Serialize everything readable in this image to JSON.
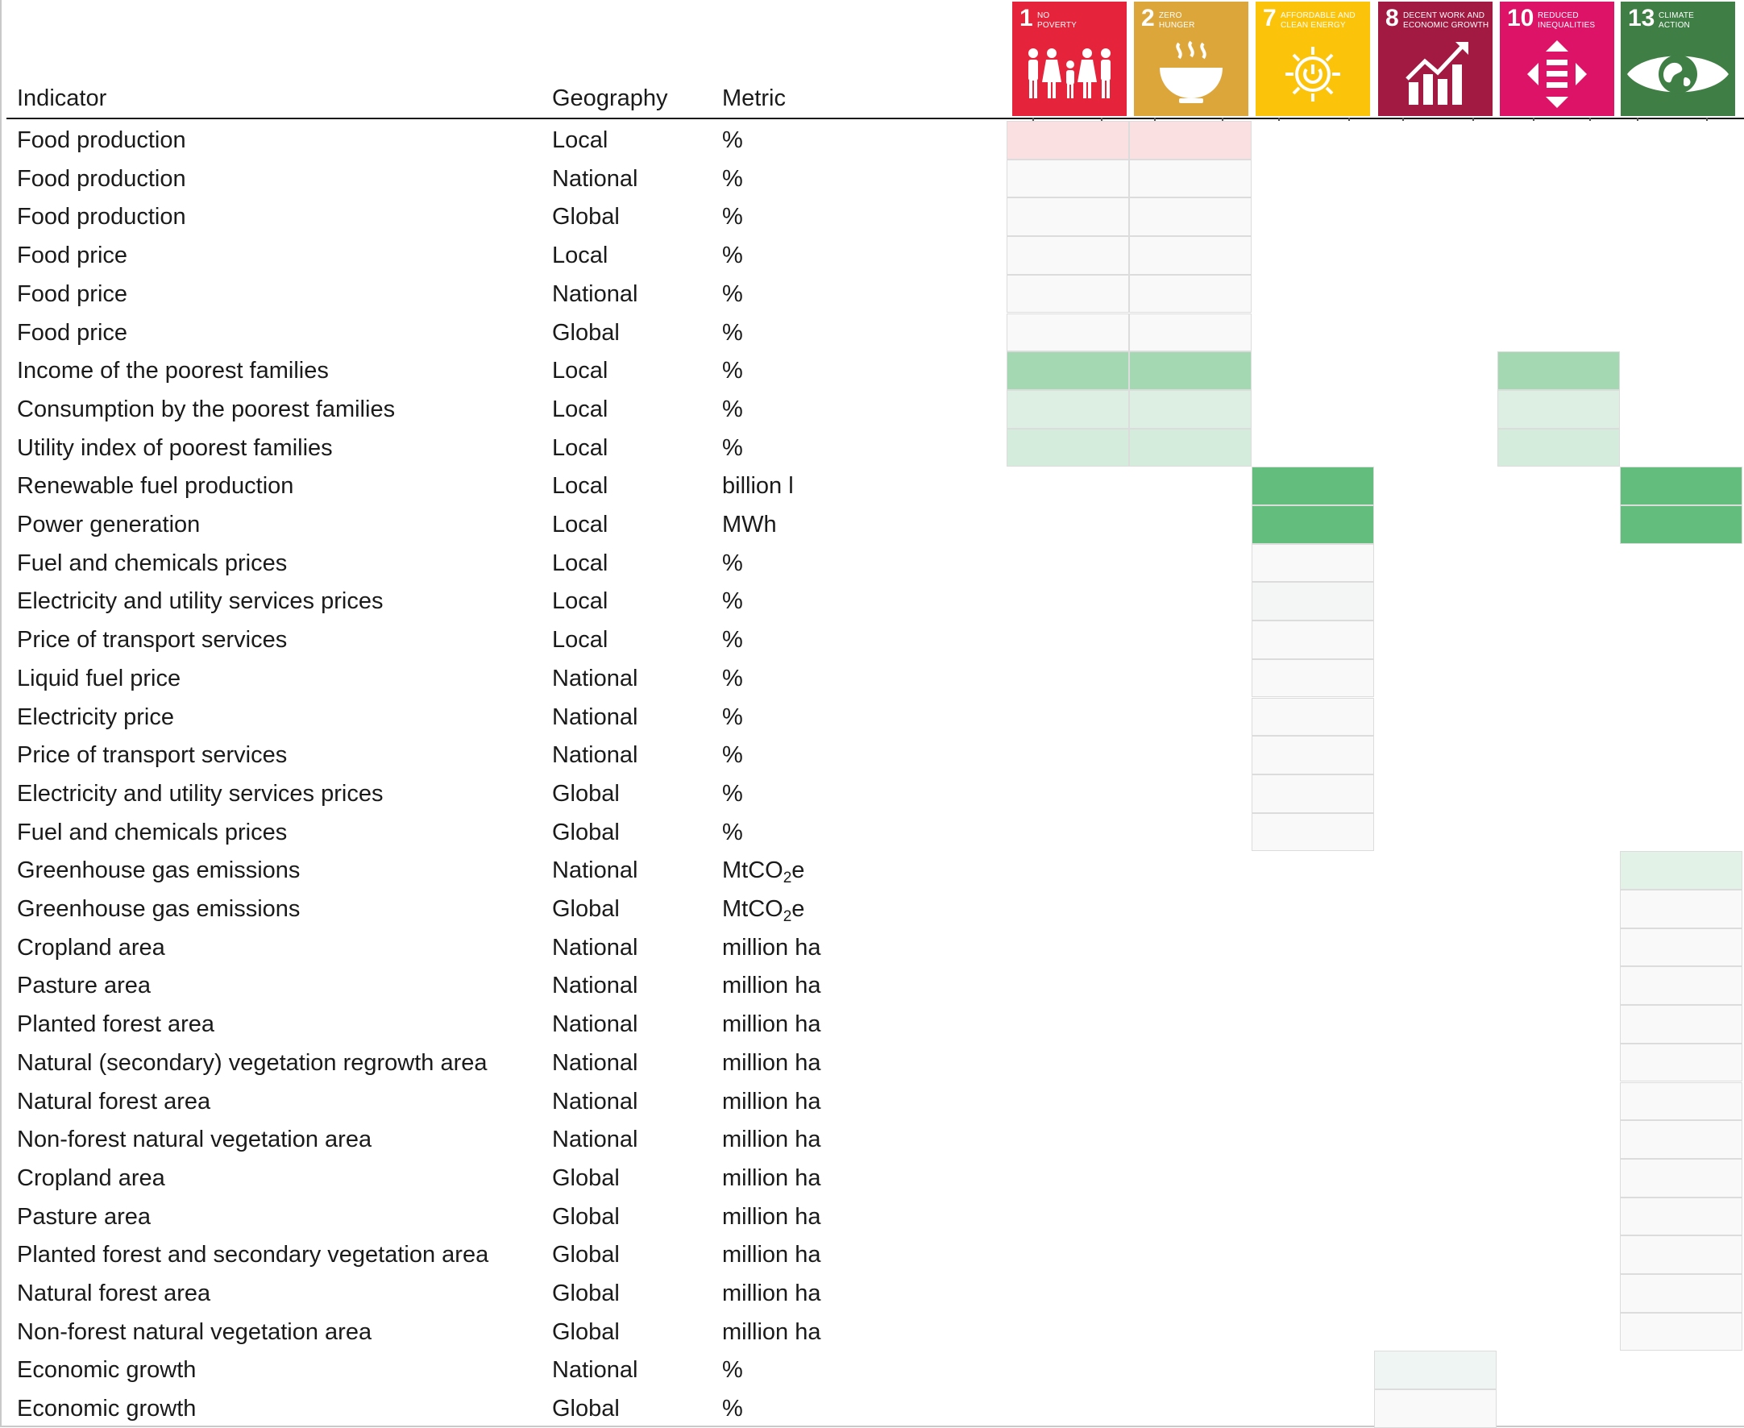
{
  "headers": {
    "indicator": "Indicator",
    "geography": "Geography",
    "metric": "Metric"
  },
  "sdg_tiles": [
    {
      "num": "1",
      "caption_l1": "NO",
      "caption_l2": "POVERTY",
      "color": "#e5243b",
      "icon": "family-icon"
    },
    {
      "num": "2",
      "caption_l1": "ZERO",
      "caption_l2": "HUNGER",
      "color": "#dda63a",
      "icon": "bowl-icon"
    },
    {
      "num": "7",
      "caption_l1": "AFFORDABLE AND",
      "caption_l2": "CLEAN ENERGY",
      "color": "#fcc30b",
      "icon": "sun-power-icon"
    },
    {
      "num": "8",
      "caption_l1": "DECENT WORK AND",
      "caption_l2": "ECONOMIC GROWTH",
      "color": "#a21942",
      "icon": "growth-chart-icon"
    },
    {
      "num": "10",
      "caption_l1": "REDUCED",
      "caption_l2": "INEQUALITIES",
      "color": "#dd1367",
      "icon": "equality-icon"
    },
    {
      "num": "13",
      "caption_l1": "CLIMATE",
      "caption_l2": "ACTION",
      "color": "#3f7e44",
      "icon": "earth-eye-icon"
    }
  ],
  "chart_data": {
    "type": "heatmap",
    "columns": [
      "1",
      "2",
      "7",
      "8",
      "10",
      "13"
    ],
    "rows": [
      {
        "indicator": "Food production",
        "geography": "Local",
        "metric": "%",
        "cells": [
          2,
          2,
          0,
          0,
          0,
          0
        ]
      },
      {
        "indicator": "Food production",
        "geography": "National",
        "metric": "%",
        "cells": [
          1,
          1,
          0,
          0,
          0,
          0
        ]
      },
      {
        "indicator": "Food production",
        "geography": "Global",
        "metric": "%",
        "cells": [
          1,
          1,
          0,
          0,
          0,
          0
        ]
      },
      {
        "indicator": "Food price",
        "geography": "Local",
        "metric": "%",
        "cells": [
          1,
          1,
          0,
          0,
          0,
          0
        ]
      },
      {
        "indicator": "Food price",
        "geography": "National",
        "metric": "%",
        "cells": [
          1,
          1,
          0,
          0,
          0,
          0
        ]
      },
      {
        "indicator": "Food price",
        "geography": "Global",
        "metric": "%",
        "cells": [
          1,
          1,
          0,
          0,
          0,
          0
        ]
      },
      {
        "indicator": "Income of the poorest families",
        "geography": "Local",
        "metric": "%",
        "cells": [
          5,
          5,
          0,
          0,
          5,
          0
        ]
      },
      {
        "indicator": "Consumption by the poorest families",
        "geography": "Local",
        "metric": "%",
        "cells": [
          3,
          3,
          0,
          0,
          3,
          0
        ]
      },
      {
        "indicator": "Utility index of poorest families",
        "geography": "Local",
        "metric": "%",
        "cells": [
          4,
          4,
          0,
          0,
          4,
          0
        ]
      },
      {
        "indicator": "Renewable fuel production",
        "geography": "Local",
        "metric": "billion l",
        "cells": [
          0,
          0,
          6,
          0,
          0,
          6
        ]
      },
      {
        "indicator": "Power generation",
        "geography": "Local",
        "metric": "MWh",
        "cells": [
          0,
          0,
          6,
          0,
          0,
          6
        ]
      },
      {
        "indicator": "Fuel and chemicals prices",
        "geography": "Local",
        "metric": "%",
        "cells": [
          0,
          0,
          1,
          0,
          0,
          0
        ]
      },
      {
        "indicator": "Electricity and utility services prices",
        "geography": "Local",
        "metric": "%",
        "cells": [
          0,
          0,
          7,
          0,
          0,
          0
        ]
      },
      {
        "indicator": "Price of transport services",
        "geography": "Local",
        "metric": "%",
        "cells": [
          0,
          0,
          1,
          0,
          0,
          0
        ]
      },
      {
        "indicator": "Liquid fuel price",
        "geography": "National",
        "metric": "%",
        "cells": [
          0,
          0,
          1,
          0,
          0,
          0
        ]
      },
      {
        "indicator": "Electricity price",
        "geography": "National",
        "metric": "%",
        "cells": [
          0,
          0,
          1,
          0,
          0,
          0
        ]
      },
      {
        "indicator": "Price of transport services",
        "geography": "National",
        "metric": "%",
        "cells": [
          0,
          0,
          1,
          0,
          0,
          0
        ]
      },
      {
        "indicator": "Electricity and utility services prices",
        "geography": "Global",
        "metric": "%",
        "cells": [
          0,
          0,
          1,
          0,
          0,
          0
        ]
      },
      {
        "indicator": "Fuel and chemicals prices",
        "geography": "Global",
        "metric": "%",
        "cells": [
          0,
          0,
          1,
          0,
          0,
          0
        ]
      },
      {
        "indicator": "Greenhouse gas emissions",
        "geography": "National",
        "metric": "MtCO2e",
        "cells": [
          0,
          0,
          0,
          0,
          0,
          8
        ]
      },
      {
        "indicator": "Greenhouse gas emissions",
        "geography": "Global",
        "metric": "MtCO2e",
        "cells": [
          0,
          0,
          0,
          0,
          0,
          1
        ]
      },
      {
        "indicator": "Cropland area",
        "geography": "National",
        "metric": "million ha",
        "cells": [
          0,
          0,
          0,
          0,
          0,
          1
        ]
      },
      {
        "indicator": "Pasture area",
        "geography": "National",
        "metric": "million ha",
        "cells": [
          0,
          0,
          0,
          0,
          0,
          1
        ]
      },
      {
        "indicator": "Planted forest area",
        "geography": "National",
        "metric": "million ha",
        "cells": [
          0,
          0,
          0,
          0,
          0,
          1
        ]
      },
      {
        "indicator": "Natural (secondary) vegetation regrowth area",
        "geography": "National",
        "metric": "million ha",
        "cells": [
          0,
          0,
          0,
          0,
          0,
          1
        ]
      },
      {
        "indicator": "Natural forest area",
        "geography": "National",
        "metric": "million ha",
        "cells": [
          0,
          0,
          0,
          0,
          0,
          1
        ]
      },
      {
        "indicator": "Non-forest natural vegetation area",
        "geography": "National",
        "metric": "million ha",
        "cells": [
          0,
          0,
          0,
          0,
          0,
          1
        ]
      },
      {
        "indicator": "Cropland area",
        "geography": "Global",
        "metric": "million ha",
        "cells": [
          0,
          0,
          0,
          0,
          0,
          1
        ]
      },
      {
        "indicator": "Pasture area",
        "geography": "Global",
        "metric": "million ha",
        "cells": [
          0,
          0,
          0,
          0,
          0,
          1
        ]
      },
      {
        "indicator": "Planted forest and secondary vegetation area",
        "geography": "Global",
        "metric": "million ha",
        "cells": [
          0,
          0,
          0,
          0,
          0,
          1
        ]
      },
      {
        "indicator": "Natural forest area",
        "geography": "Global",
        "metric": "million ha",
        "cells": [
          0,
          0,
          0,
          0,
          0,
          1
        ]
      },
      {
        "indicator": "Non-forest natural vegetation area",
        "geography": "Global",
        "metric": "million ha",
        "cells": [
          0,
          0,
          0,
          0,
          0,
          1
        ]
      },
      {
        "indicator": "Economic growth",
        "geography": "National",
        "metric": "%",
        "cells": [
          0,
          0,
          0,
          9,
          0,
          0
        ]
      },
      {
        "indicator": "Economic growth",
        "geography": "Global",
        "metric": "%",
        "cells": [
          0,
          0,
          0,
          1,
          0,
          0
        ]
      }
    ],
    "palette": {
      "0": "",
      "1": "#f9f9f9",
      "2": "#fbe0e2",
      "3": "#dcefe2",
      "4": "#d3ecdb",
      "5": "#a3d8b2",
      "6": "#63bd7c",
      "7": "#f3f6f4",
      "8": "#e2f2e6",
      "9": "#eff5f3"
    }
  }
}
